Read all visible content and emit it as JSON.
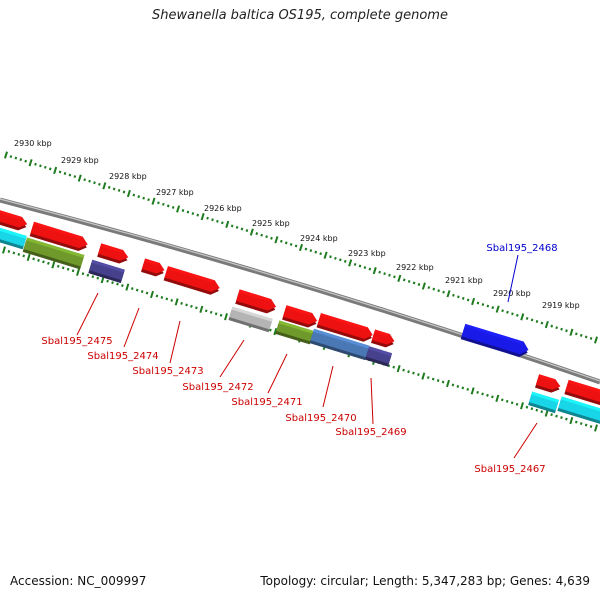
{
  "title": "Shewanella baltica OS195, complete genome",
  "footer": {
    "accession": "Accession: NC_009997",
    "summary": "Topology: circular; Length: 5,347,283 bp; Genes: 4,639"
  },
  "colors": {
    "red": "#ee1111",
    "cyan": "#18d6e8",
    "olive": "#6f9a2b",
    "steelblue": "#4a78b4",
    "purple": "#46418c",
    "gray": "#b4b4b4",
    "blue": "#1a1ae8",
    "tick": "#1d7a1d",
    "backbone": "#7a7a7a",
    "labelRed": "#cc0000",
    "labelBlue": "#0000cc"
  },
  "kbp_labels": [
    "2930 kbp",
    "2929 kbp",
    "2928 kbp",
    "2927 kbp",
    "2926 kbp",
    "2925 kbp",
    "2924 kbp",
    "2923 kbp",
    "2922 kbp",
    "2921 kbp",
    "2920 kbp",
    "2919 kbp"
  ],
  "gene_labels": [
    {
      "text": "Sbal195_2475",
      "color": "red"
    },
    {
      "text": "Sbal195_2474",
      "color": "red"
    },
    {
      "text": "Sbal195_2473",
      "color": "red"
    },
    {
      "text": "Sbal195_2472",
      "color": "red"
    },
    {
      "text": "Sbal195_2471",
      "color": "red"
    },
    {
      "text": "Sbal195_2470",
      "color": "red"
    },
    {
      "text": "Sbal195_2469",
      "color": "red"
    },
    {
      "text": "Sbal195_2468",
      "color": "blue"
    },
    {
      "text": "Sbal195_2467",
      "color": "red"
    }
  ]
}
